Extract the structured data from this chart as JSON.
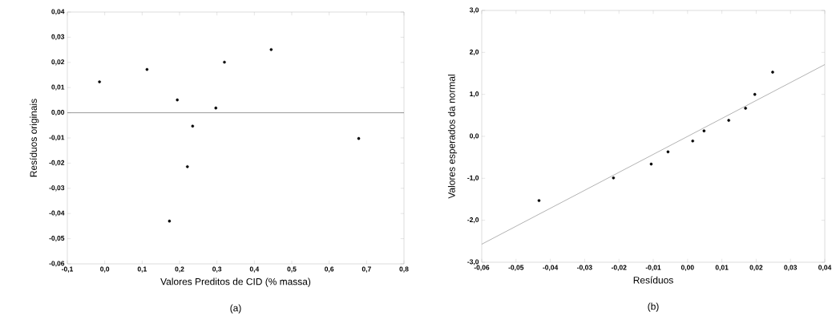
{
  "chart_data": [
    {
      "type": "scatter",
      "xlabel": "Valores Preditos de CID (% massa)",
      "ylabel": "Resíduos originais",
      "annotations": [
        "(a)"
      ],
      "series": [
        {
          "type": "scatter",
          "marker": "circle",
          "color": "#000000",
          "x": [
            -0.014,
            0.113,
            0.194,
            0.235,
            0.221,
            0.173,
            0.297,
            0.32,
            0.445,
            0.679
          ],
          "values": [
            0.0123,
            0.0172,
            0.0051,
            -0.0053,
            -0.0214,
            -0.043,
            0.0019,
            0.0201,
            0.0251,
            -0.0102
          ]
        }
      ],
      "ref_lines": [
        {
          "axis": "y",
          "value": 0,
          "color": "#808080"
        }
      ],
      "xlim": [
        -0.1,
        0.8
      ],
      "ylim": [
        -0.06,
        0.04
      ],
      "xticks": [
        {
          "value": -0.1,
          "label": "-0,1"
        },
        {
          "value": 0.0,
          "label": "0,0"
        },
        {
          "value": 0.1,
          "label": "0,1"
        },
        {
          "value": 0.2,
          "label": "0,2"
        },
        {
          "value": 0.3,
          "label": "0,3"
        },
        {
          "value": 0.4,
          "label": "0,4"
        },
        {
          "value": 0.5,
          "label": "0,5"
        },
        {
          "value": 0.6,
          "label": "0,6"
        },
        {
          "value": 0.7,
          "label": "0,7"
        },
        {
          "value": 0.8,
          "label": "0,8"
        }
      ],
      "yticks": [
        {
          "value": -0.06,
          "label": "-0,06"
        },
        {
          "value": -0.05,
          "label": "-0,05"
        },
        {
          "value": -0.04,
          "label": "-0,04"
        },
        {
          "value": -0.03,
          "label": "-0,03"
        },
        {
          "value": -0.02,
          "label": "-0,02"
        },
        {
          "value": -0.01,
          "label": "-0,01"
        },
        {
          "value": 0.0,
          "label": "0,00"
        },
        {
          "value": 0.01,
          "label": "0,01"
        },
        {
          "value": 0.02,
          "label": "0,02"
        },
        {
          "value": 0.03,
          "label": "0,03"
        },
        {
          "value": 0.04,
          "label": "0,04"
        }
      ]
    },
    {
      "type": "scatter",
      "xlabel": "Resíduos",
      "ylabel": "Valores esperados da normal",
      "annotations": [
        "(b)"
      ],
      "series": [
        {
          "type": "scatter",
          "marker": "circle",
          "color": "#000000",
          "x": [
            -0.0433,
            -0.0216,
            -0.0106,
            -0.0057,
            0.0015,
            0.0048,
            0.012,
            0.0169,
            0.0196,
            0.0248
          ],
          "values": [
            -1.53,
            -0.99,
            -0.66,
            -0.37,
            -0.11,
            0.13,
            0.38,
            0.67,
            1.0,
            1.53
          ]
        },
        {
          "type": "line",
          "marker": "none",
          "color": "#808080",
          "x": [
            -0.06,
            0.04
          ],
          "values": [
            -2.57,
            1.71
          ]
        }
      ],
      "xlim": [
        -0.06,
        0.04
      ],
      "ylim": [
        -3.0,
        3.0
      ],
      "xticks": [
        {
          "value": -0.06,
          "label": "-0,06"
        },
        {
          "value": -0.05,
          "label": "-0,05"
        },
        {
          "value": -0.04,
          "label": "-0,04"
        },
        {
          "value": -0.03,
          "label": "-0,03"
        },
        {
          "value": -0.02,
          "label": "-0,02"
        },
        {
          "value": -0.01,
          "label": "-0,01"
        },
        {
          "value": 0.0,
          "label": "0,00"
        },
        {
          "value": 0.01,
          "label": "0,01"
        },
        {
          "value": 0.02,
          "label": "0,02"
        },
        {
          "value": 0.03,
          "label": "0,03"
        },
        {
          "value": 0.04,
          "label": "0,04"
        }
      ],
      "yticks": [
        {
          "value": -3.0,
          "label": "-3,0"
        },
        {
          "value": -2.0,
          "label": "-2,0"
        },
        {
          "value": -1.0,
          "label": "-1,0"
        },
        {
          "value": 0.0,
          "label": "0,0"
        },
        {
          "value": 1.0,
          "label": "1,0"
        },
        {
          "value": 2.0,
          "label": "2,0"
        },
        {
          "value": 3.0,
          "label": "3,0"
        }
      ]
    }
  ]
}
